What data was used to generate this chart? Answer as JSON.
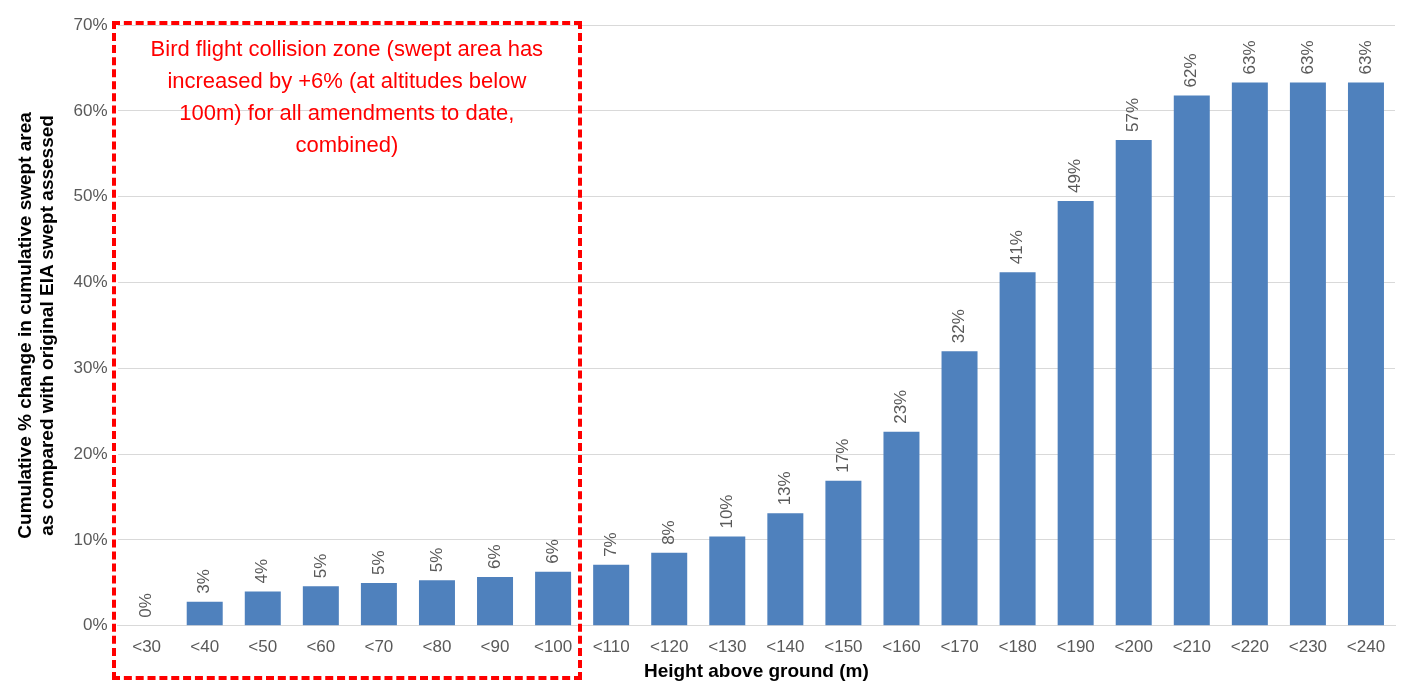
{
  "chart_data": {
    "type": "bar",
    "xlabel": "Height above ground (m)",
    "ylabel": "Cumulative % change in cumulative swept area\nas compared with original EIA swept assessed",
    "categories": [
      "<30",
      "<40",
      "<50",
      "<60",
      "<70",
      "<80",
      "<90",
      "<100",
      "<110",
      "<120",
      "<130",
      "<140",
      "<150",
      "<160",
      "<170",
      "<180",
      "<190",
      "<200",
      "<210",
      "<220",
      "<230",
      "<240"
    ],
    "values": [
      0,
      2.8,
      4.0,
      4.6,
      5.0,
      5.3,
      5.7,
      6.3,
      7.1,
      8.5,
      10.4,
      13.1,
      16.9,
      22.6,
      32.0,
      41.2,
      49.5,
      56.6,
      61.8,
      63.3,
      63.3,
      63.3
    ],
    "value_labels": [
      "0%",
      "3%",
      "4%",
      "5%",
      "5%",
      "5%",
      "6%",
      "6%",
      "7%",
      "8%",
      "10%",
      "13%",
      "17%",
      "23%",
      "32%",
      "41%",
      "49%",
      "57%",
      "62%",
      "63%",
      "63%",
      "63%"
    ],
    "color": "#4f81bd",
    "ylim": [
      0,
      70
    ],
    "yticks": [
      {
        "value": 0,
        "label": "0%"
      },
      {
        "value": 10,
        "label": "10%"
      },
      {
        "value": 20,
        "label": "20%"
      },
      {
        "value": 30,
        "label": "30%"
      },
      {
        "value": 40,
        "label": "40%"
      },
      {
        "value": 50,
        "label": "50%"
      },
      {
        "value": 60,
        "label": "60%"
      },
      {
        "value": 70,
        "label": "70%"
      }
    ],
    "grid": "y",
    "legend": false,
    "annotations": [
      "Bird flight collision zone (swept area has increased by +6% (at altitudes below 100m) for all amendments to date, combined)"
    ]
  }
}
